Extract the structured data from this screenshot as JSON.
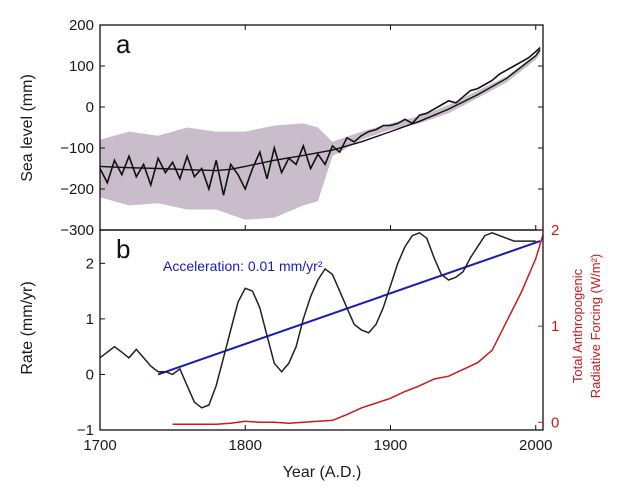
{
  "chart_data": [
    {
      "panel": "a",
      "type": "line",
      "xlabel": "Year (A.D.)",
      "ylabel": "Sea level (mm)",
      "xlim": [
        1700,
        2005
      ],
      "ylim": [
        -300,
        200
      ],
      "xticks": [
        "1700",
        "1800",
        "1900",
        "2000"
      ],
      "yticks": [
        "200",
        "100",
        "0",
        "−100",
        "−200",
        "−300"
      ],
      "series": [
        {
          "role": "annual sea level (noisy)",
          "color": "#111111",
          "x": [
            1700,
            1705,
            1710,
            1715,
            1720,
            1725,
            1730,
            1735,
            1740,
            1745,
            1750,
            1755,
            1760,
            1765,
            1770,
            1775,
            1780,
            1785,
            1790,
            1795,
            1800,
            1805,
            1810,
            1815,
            1820,
            1825,
            1830,
            1835,
            1840,
            1845,
            1850,
            1855,
            1860,
            1865,
            1870,
            1875,
            1880,
            1885,
            1890,
            1895,
            1900,
            1905,
            1910,
            1915,
            1920,
            1925,
            1930,
            1935,
            1940,
            1945,
            1950,
            1955,
            1960,
            1965,
            1970,
            1975,
            1980,
            1985,
            1990,
            1995,
            2000,
            2003
          ],
          "y": [
            -150,
            -185,
            -130,
            -165,
            -120,
            -170,
            -140,
            -190,
            -125,
            -160,
            -135,
            -175,
            -120,
            -170,
            -150,
            -200,
            -130,
            -215,
            -140,
            -165,
            -200,
            -150,
            -110,
            -175,
            -100,
            -160,
            -125,
            -140,
            -95,
            -150,
            -115,
            -140,
            -95,
            -110,
            -75,
            -85,
            -70,
            -60,
            -55,
            -45,
            -45,
            -40,
            -30,
            -40,
            -20,
            -15,
            -5,
            5,
            15,
            10,
            25,
            40,
            45,
            55,
            65,
            80,
            90,
            100,
            110,
            120,
            135,
            145
          ]
        },
        {
          "role": "smoothed sea level",
          "color": "#111111",
          "x": [
            1700,
            1720,
            1740,
            1760,
            1780,
            1790,
            1800,
            1820,
            1840,
            1860,
            1880,
            1900,
            1920,
            1940,
            1960,
            1980,
            2000,
            2003
          ],
          "y": [
            -145,
            -148,
            -150,
            -153,
            -155,
            -152,
            -145,
            -130,
            -118,
            -105,
            -85,
            -60,
            -35,
            -5,
            30,
            70,
            125,
            140
          ]
        },
        {
          "role": "uncertainty band",
          "color": "#c9bccb",
          "x": [
            1700,
            1720,
            1740,
            1760,
            1780,
            1800,
            1820,
            1840,
            1850,
            1860,
            1880,
            1900,
            1920,
            1940,
            1960,
            1980,
            2000,
            2003
          ],
          "upper": [
            -80,
            -60,
            -70,
            -50,
            -60,
            -60,
            -45,
            -40,
            -50,
            -85,
            -60,
            -40,
            -22,
            5,
            40,
            75,
            128,
            150
          ],
          "lower": [
            -220,
            -240,
            -235,
            -250,
            -250,
            -275,
            -270,
            -240,
            -230,
            -120,
            -80,
            -55,
            -40,
            -15,
            22,
            60,
            115,
            130
          ]
        }
      ],
      "annotations": [
        "a"
      ]
    },
    {
      "panel": "b",
      "type": "line",
      "xlabel": "Year (A.D.)",
      "ylabel": "Rate (mm/yr)",
      "y2label_line1": "Total Anthropogenic",
      "y2label_line2": "Radiative Forcing (W/m²)",
      "xlim": [
        1700,
        2005
      ],
      "ylim": [
        -1,
        2.6
      ],
      "y2lim": [
        -0.08,
        2
      ],
      "xticks": [
        "1700",
        "1800",
        "1900",
        "2000"
      ],
      "yticks": [
        "2",
        "1",
        "0",
        "−1"
      ],
      "y2ticks": [
        "2",
        "1",
        "0"
      ],
      "series": [
        {
          "role": "rate of sea-level rise",
          "color": "#222222",
          "x": [
            1700,
            1705,
            1710,
            1715,
            1720,
            1725,
            1730,
            1735,
            1740,
            1745,
            1750,
            1755,
            1760,
            1765,
            1770,
            1775,
            1780,
            1785,
            1790,
            1795,
            1800,
            1805,
            1810,
            1815,
            1820,
            1825,
            1830,
            1835,
            1840,
            1845,
            1850,
            1855,
            1860,
            1865,
            1870,
            1875,
            1880,
            1885,
            1890,
            1895,
            1900,
            1905,
            1910,
            1915,
            1920,
            1925,
            1930,
            1935,
            1940,
            1945,
            1950,
            1955,
            1960,
            1965,
            1970,
            1975,
            1980,
            1985,
            1990,
            1995,
            2000
          ],
          "y": [
            0.3,
            0.4,
            0.5,
            0.4,
            0.3,
            0.45,
            0.3,
            0.15,
            0.05,
            0.05,
            0.0,
            0.1,
            -0.2,
            -0.5,
            -0.6,
            -0.55,
            -0.2,
            0.3,
            0.8,
            1.3,
            1.55,
            1.5,
            1.2,
            0.7,
            0.2,
            0.05,
            0.2,
            0.5,
            1.0,
            1.4,
            1.7,
            1.9,
            1.8,
            1.5,
            1.2,
            0.9,
            0.8,
            0.75,
            0.9,
            1.2,
            1.6,
            2.0,
            2.3,
            2.5,
            2.55,
            2.45,
            2.1,
            1.8,
            1.7,
            1.75,
            1.85,
            2.1,
            2.3,
            2.5,
            2.55,
            2.5,
            2.45,
            2.4,
            2.4,
            2.4,
            2.4
          ]
        },
        {
          "role": "linear fit",
          "label": "Acceleration: 0.01 mm/yr²",
          "color": "#1a1ab8",
          "x": [
            1740,
            2003
          ],
          "y": [
            0.0,
            2.4
          ]
        },
        {
          "role": "radiative forcing",
          "axis": "y2",
          "color": "#cc1a1a",
          "x": [
            1750,
            1760,
            1770,
            1780,
            1790,
            1800,
            1810,
            1820,
            1830,
            1840,
            1850,
            1860,
            1870,
            1880,
            1890,
            1900,
            1910,
            1920,
            1930,
            1940,
            1950,
            1960,
            1970,
            1980,
            1990,
            2000,
            2005
          ],
          "y": [
            -0.02,
            -0.02,
            -0.02,
            -0.02,
            -0.01,
            0.01,
            0.0,
            0.0,
            -0.01,
            0.0,
            0.01,
            0.02,
            0.08,
            0.15,
            0.2,
            0.25,
            0.32,
            0.38,
            0.45,
            0.48,
            0.55,
            0.62,
            0.75,
            1.05,
            1.35,
            1.7,
            1.95
          ]
        }
      ],
      "annotations": [
        "b"
      ]
    }
  ]
}
